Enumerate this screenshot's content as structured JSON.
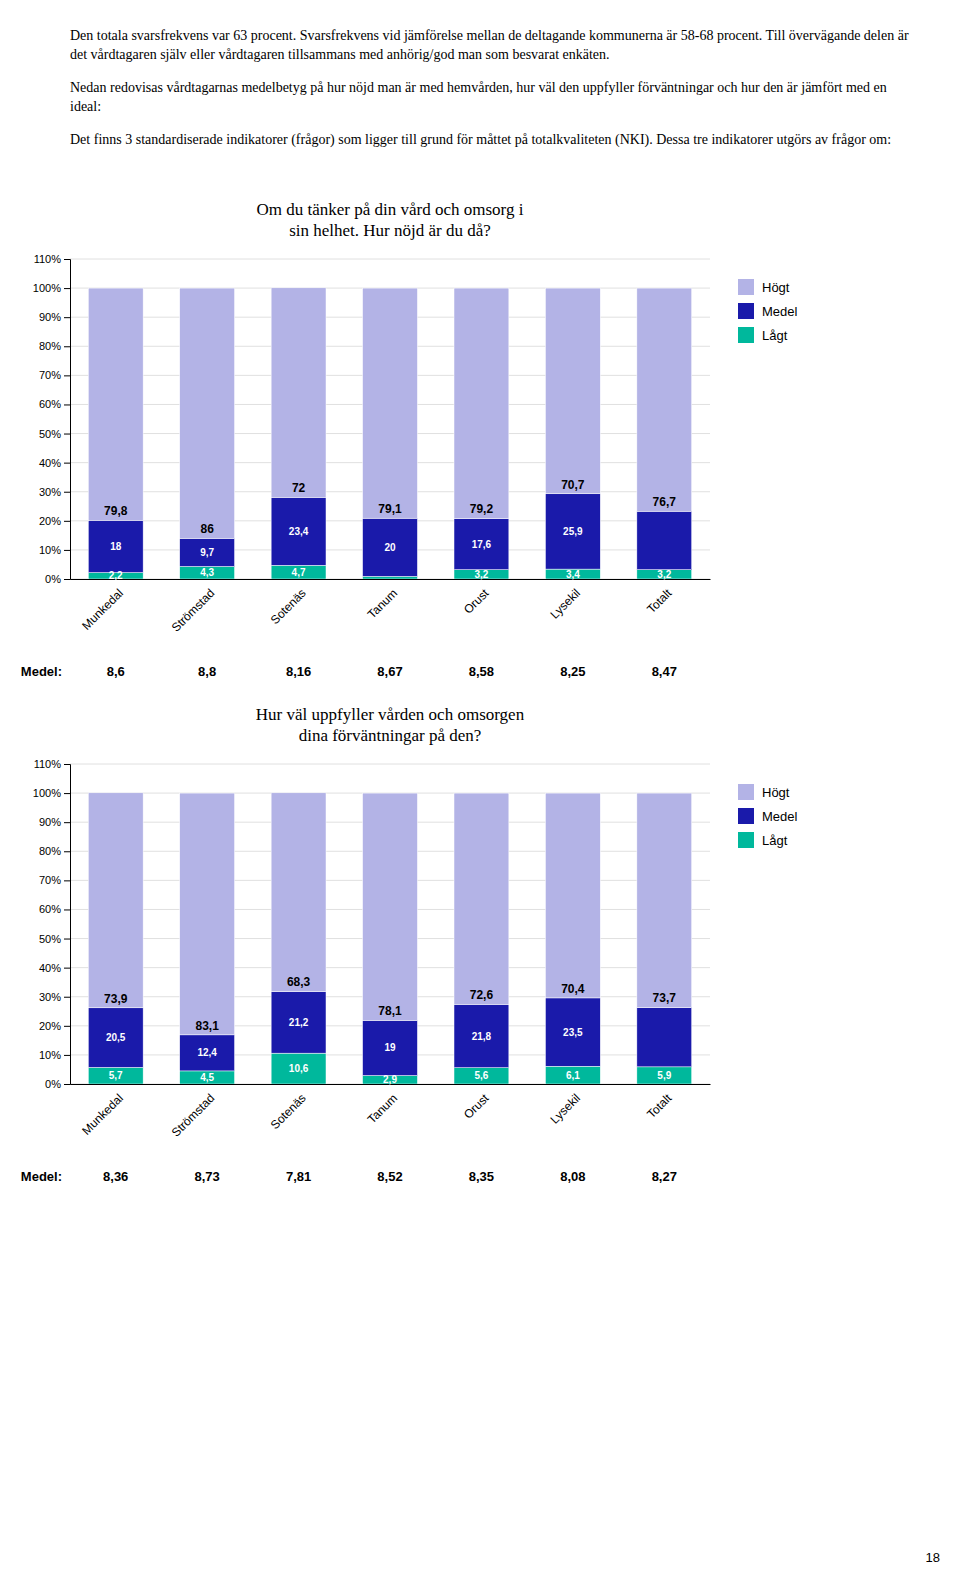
{
  "chart_data": [
    {
      "type": "bar",
      "stacked": true,
      "title": "Om du tänker på din vård och omsorg i\nsin helhet. Hur nöjd är du då?",
      "categories": [
        "Munkedal",
        "Strömstad",
        "Sotenäs",
        "Tanum",
        "Orust",
        "Lysekil",
        "Totalt"
      ],
      "series": [
        {
          "name": "Lågt",
          "color": "#00b89c",
          "values": [
            2.2,
            4.3,
            4.7,
            0.9,
            3.2,
            3.4,
            3.2
          ],
          "value_labels": [
            "2,2",
            "4,3",
            "4,7",
            null,
            "3,2",
            "3,4",
            "3,2"
          ]
        },
        {
          "name": "Medel",
          "color": "#1a1aaa",
          "values": [
            18.0,
            9.7,
            23.4,
            20.0,
            17.6,
            25.9,
            20.1
          ],
          "value_labels": [
            "18",
            "9,7",
            "23,4",
            "20",
            "17,6",
            "25,9",
            null
          ]
        },
        {
          "name": "Högt",
          "color": "#b3b3e6",
          "values": [
            79.8,
            86.0,
            72.0,
            79.1,
            79.2,
            70.7,
            76.7
          ],
          "value_labels": [
            "79,8",
            "86",
            "72",
            "79,1",
            "79,2",
            "70,7",
            "76,7"
          ]
        }
      ],
      "ylim": [
        0,
        110
      ],
      "yticks": [
        {
          "value": 0,
          "label": "0%"
        },
        {
          "value": 10,
          "label": "10%"
        },
        {
          "value": 20,
          "label": "20%"
        },
        {
          "value": 30,
          "label": "30%"
        },
        {
          "value": 40,
          "label": "40%"
        },
        {
          "value": 50,
          "label": "50%"
        },
        {
          "value": 60,
          "label": "60%"
        },
        {
          "value": 70,
          "label": "70%"
        },
        {
          "value": 80,
          "label": "80%"
        },
        {
          "value": 90,
          "label": "90%"
        },
        {
          "value": 100,
          "label": "100%"
        },
        {
          "value": 110,
          "label": "110%"
        }
      ],
      "grid": true,
      "data_labels": true,
      "legend": "right",
      "mean_row": {
        "label": "Medel: ",
        "value_labels": [
          "8,6",
          "8,8",
          "8,16",
          "8,67",
          "8,58",
          "8,25",
          "8,47"
        ]
      }
    },
    {
      "type": "bar",
      "stacked": true,
      "title": "Hur väl uppfyller vården och omsorgen\ndina förväntningar på den?",
      "categories": [
        "Munkedal",
        "Strömstad",
        "Sotenäs",
        "Tanum",
        "Orust",
        "Lysekil",
        "Totalt"
      ],
      "series": [
        {
          "name": "Lågt",
          "color": "#00b89c",
          "values": [
            5.7,
            4.5,
            10.6,
            2.9,
            5.6,
            6.1,
            5.9
          ],
          "value_labels": [
            "5,7",
            "4,5",
            "10,6",
            "2,9",
            "5,6",
            "6,1",
            "5,9"
          ]
        },
        {
          "name": "Medel",
          "color": "#1a1aaa",
          "values": [
            20.5,
            12.4,
            21.2,
            19.0,
            21.8,
            23.5,
            20.4
          ],
          "value_labels": [
            "20,5",
            "12,4",
            "21,2",
            "19",
            "21,8",
            "23,5",
            null
          ]
        },
        {
          "name": "Högt",
          "color": "#b3b3e6",
          "values": [
            73.9,
            83.1,
            68.3,
            78.1,
            72.6,
            70.4,
            73.7
          ],
          "value_labels": [
            "73,9",
            "83,1",
            "68,3",
            "78,1",
            "72,6",
            "70,4",
            "73,7"
          ]
        }
      ],
      "ylim": [
        0,
        110
      ],
      "yticks": [
        {
          "value": 0,
          "label": "0%"
        },
        {
          "value": 10,
          "label": "10%"
        },
        {
          "value": 20,
          "label": "20%"
        },
        {
          "value": 30,
          "label": "30%"
        },
        {
          "value": 40,
          "label": "40%"
        },
        {
          "value": 50,
          "label": "50%"
        },
        {
          "value": 60,
          "label": "60%"
        },
        {
          "value": 70,
          "label": "70%"
        },
        {
          "value": 80,
          "label": "80%"
        },
        {
          "value": 90,
          "label": "90%"
        },
        {
          "value": 100,
          "label": "100%"
        },
        {
          "value": 110,
          "label": "110%"
        }
      ],
      "grid": true,
      "data_labels": true,
      "legend": "right",
      "mean_row": {
        "label": "Medel:",
        "value_labels": [
          "8,36",
          "8,73",
          "7,81",
          "8,52",
          "8,35",
          "8,08",
          "8,27"
        ]
      }
    }
  ],
  "annotations": [
    "Den totala svarsfrekvens var 63 procent. Svarsfrekvens vid jämförelse mellan de deltagande kommunerna är 58-68 procent. Till övervägande delen är det vårdtagaren själv eller vårdtagaren tillsammans med anhörig/god man som besvarat enkäten.",
    "Nedan redovisas vårdtagarnas medelbetyg på hur nöjd man är med hemvården, hur väl den uppfyller förväntningar och hur den är jämfört med en ideal:",
    "Det finns 3 standardiserade indikatorer (frågor) som ligger till grund för måttet på totalkvaliteten (NKI). Dessa tre indikatorer utgörs av frågor om:"
  ],
  "page_number": "18"
}
